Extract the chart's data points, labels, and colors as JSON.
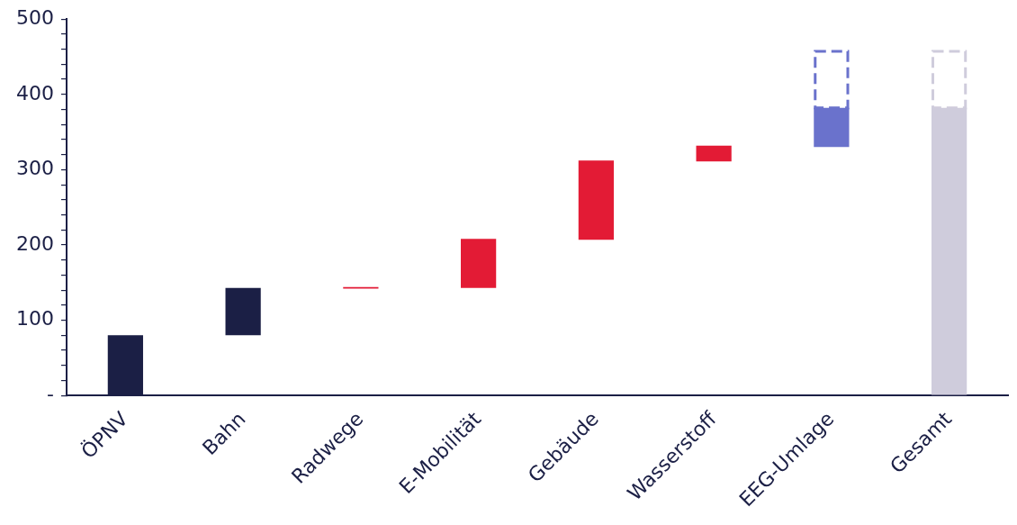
{
  "chart_data": {
    "type": "bar",
    "categories": [
      "ÖPNV",
      "Bahn",
      "Radwege",
      "E-Mobilität",
      "Gebäude",
      "Wasserstoff",
      "EEG-Umlage",
      "Gesamt"
    ],
    "series": [
      {
        "type": "bar",
        "colors": [
          "#1b1f45",
          "#1b1f45",
          "#e31b35",
          "#e31b35",
          "#e31b35",
          "#e31b35",
          "#6a72cc",
          "#cfccdc"
        ],
        "base": [
          0,
          80,
          142,
          143,
          207,
          311,
          330,
          0
        ],
        "values": [
          80,
          63,
          2,
          65,
          105,
          21,
          52,
          382
        ]
      },
      {
        "type": "bar",
        "line_style": "dashed",
        "colors": [
          null,
          null,
          null,
          null,
          null,
          null,
          "#6a72cc",
          "#cfccdc"
        ],
        "base": [
          null,
          null,
          null,
          null,
          null,
          null,
          382,
          382
        ],
        "values": [
          null,
          null,
          null,
          null,
          null,
          null,
          77,
          77
        ]
      }
    ],
    "ylim": [
      0,
      500
    ],
    "yticks": [
      {
        "value": 0,
        "label": "-"
      },
      {
        "value": 20,
        "label": null
      },
      {
        "value": 40,
        "label": null
      },
      {
        "value": 60,
        "label": null
      },
      {
        "value": 80,
        "label": null
      },
      100,
      {
        "value": 120,
        "label": null
      },
      {
        "value": 140,
        "label": null
      },
      {
        "value": 160,
        "label": null
      },
      {
        "value": 180,
        "label": null
      },
      200,
      {
        "value": 220,
        "label": null
      },
      {
        "value": 240,
        "label": null
      },
      {
        "value": 260,
        "label": null
      },
      {
        "value": 280,
        "label": null
      },
      300,
      {
        "value": 320,
        "label": null
      },
      {
        "value": 340,
        "label": null
      },
      {
        "value": 360,
        "label": null
      },
      {
        "value": 380,
        "label": null
      },
      400,
      {
        "value": 420,
        "label": null
      },
      {
        "value": 440,
        "label": null
      },
      {
        "value": 460,
        "label": null
      },
      {
        "value": 480,
        "label": null
      },
      500
    ],
    "grid": false,
    "legend": false
  }
}
